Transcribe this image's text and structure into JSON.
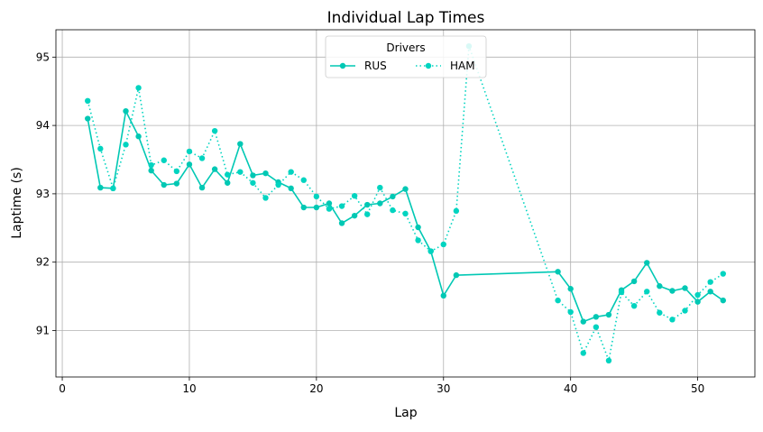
{
  "chart_data": {
    "type": "line",
    "title": "Individual Lap Times",
    "xlabel": "Lap",
    "ylabel": "Laptime (s)",
    "xlim": [
      -0.5,
      54.5
    ],
    "ylim": [
      90.32,
      95.4
    ],
    "xticks": [
      0,
      10,
      20,
      30,
      40,
      50
    ],
    "yticks": [
      91,
      92,
      93,
      94,
      95
    ],
    "grid": true,
    "legend": {
      "title": "Drivers",
      "position": "top-center",
      "columns": 2
    },
    "series": [
      {
        "name": "RUS",
        "color": "#00c8b4",
        "linestyle": "solid",
        "points": [
          [
            2,
            94.1
          ],
          [
            3,
            93.09
          ],
          [
            4,
            93.08
          ],
          [
            5,
            94.21
          ],
          [
            6,
            93.84
          ],
          [
            7,
            93.34
          ],
          [
            8,
            93.13
          ],
          [
            9,
            93.15
          ],
          [
            10,
            93.43
          ],
          [
            11,
            93.09
          ],
          [
            12,
            93.36
          ],
          [
            13,
            93.16
          ],
          [
            14,
            93.73
          ],
          [
            15,
            93.27
          ],
          [
            16,
            93.3
          ],
          [
            17,
            93.17
          ],
          [
            18,
            93.08
          ],
          [
            19,
            92.8
          ],
          [
            20,
            92.8
          ],
          [
            21,
            92.86
          ],
          [
            22,
            92.57
          ],
          [
            23,
            92.68
          ],
          [
            24,
            92.84
          ],
          [
            25,
            92.86
          ],
          [
            26,
            92.96
          ],
          [
            27,
            93.07
          ],
          [
            28,
            92.51
          ],
          [
            29,
            92.16
          ],
          [
            30,
            91.51
          ],
          [
            31,
            91.81
          ],
          [
            39,
            91.86
          ],
          [
            40,
            91.61
          ],
          [
            41,
            91.13
          ],
          [
            42,
            91.2
          ],
          [
            43,
            91.23
          ],
          [
            44,
            91.59
          ],
          [
            45,
            91.72
          ],
          [
            46,
            91.99
          ],
          [
            47,
            91.65
          ],
          [
            48,
            91.58
          ],
          [
            49,
            91.62
          ],
          [
            50,
            91.42
          ],
          [
            51,
            91.57
          ],
          [
            52,
            91.44
          ]
        ]
      },
      {
        "name": "HAM",
        "color": "#00d4c0",
        "linestyle": "dotted",
        "points": [
          [
            2,
            94.36
          ],
          [
            3,
            93.66
          ],
          [
            4,
            93.08
          ],
          [
            5,
            93.72
          ],
          [
            6,
            94.55
          ],
          [
            7,
            93.42
          ],
          [
            8,
            93.49
          ],
          [
            9,
            93.33
          ],
          [
            10,
            93.62
          ],
          [
            11,
            93.52
          ],
          [
            12,
            93.92
          ],
          [
            13,
            93.28
          ],
          [
            14,
            93.32
          ],
          [
            15,
            93.16
          ],
          [
            16,
            92.94
          ],
          [
            17,
            93.13
          ],
          [
            18,
            93.32
          ],
          [
            19,
            93.2
          ],
          [
            20,
            92.96
          ],
          [
            21,
            92.78
          ],
          [
            22,
            92.82
          ],
          [
            23,
            92.97
          ],
          [
            24,
            92.7
          ],
          [
            25,
            93.09
          ],
          [
            26,
            92.76
          ],
          [
            27,
            92.71
          ],
          [
            28,
            92.32
          ],
          [
            29,
            92.16
          ],
          [
            30,
            92.26
          ],
          [
            31,
            92.75
          ],
          [
            32,
            95.16
          ],
          [
            39,
            91.44
          ],
          [
            40,
            91.27
          ],
          [
            41,
            90.67
          ],
          [
            42,
            91.05
          ],
          [
            43,
            90.56
          ],
          [
            44,
            91.56
          ],
          [
            45,
            91.36
          ],
          [
            46,
            91.57
          ],
          [
            47,
            91.26
          ],
          [
            48,
            91.16
          ],
          [
            49,
            91.29
          ],
          [
            50,
            91.52
          ],
          [
            51,
            91.71
          ],
          [
            52,
            91.83
          ]
        ]
      }
    ]
  }
}
